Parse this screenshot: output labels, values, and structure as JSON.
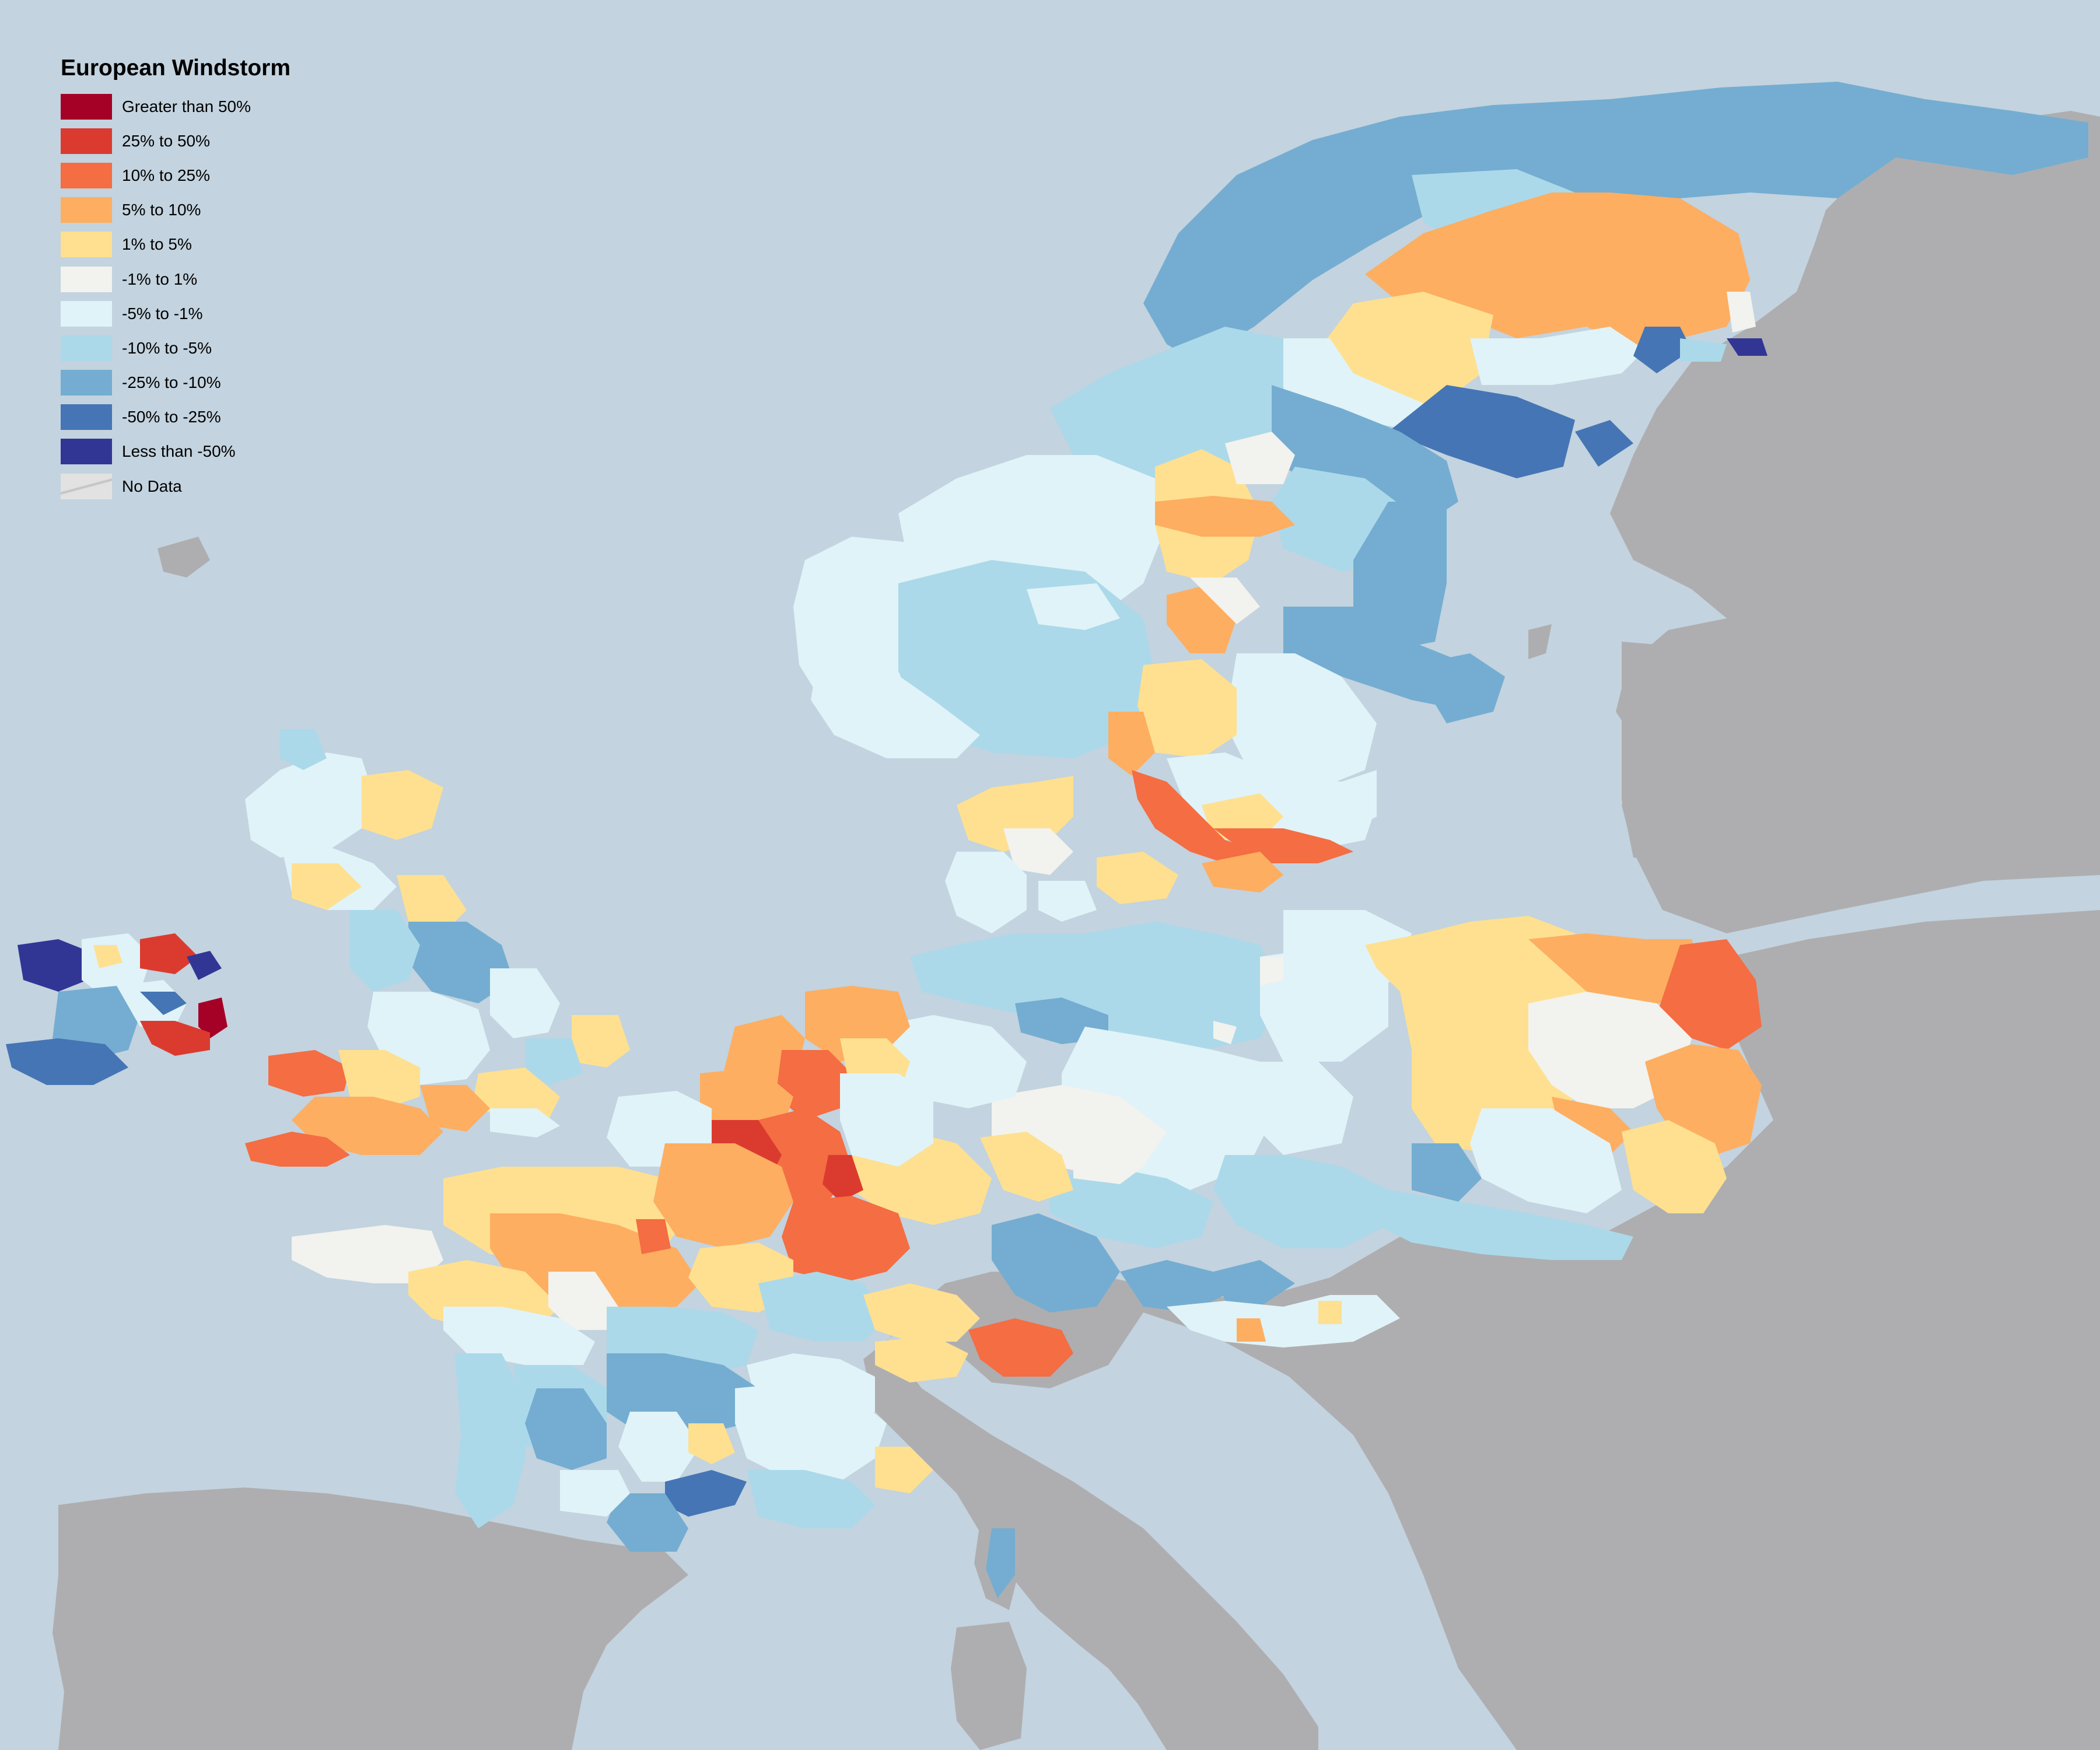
{
  "title": "European Windstorm",
  "legend": [
    {
      "label": "Greater than 50%",
      "color": "#a50026"
    },
    {
      "label": "25% to 50%",
      "color": "#db3b2f"
    },
    {
      "label": "10% to 25%",
      "color": "#f46d43"
    },
    {
      "label": "5% to 10%",
      "color": "#fdae61"
    },
    {
      "label": "1% to 5%",
      "color": "#fee090"
    },
    {
      "label": "-1% to 1%",
      "color": "#f2f2ee"
    },
    {
      "label": "-5% to -1%",
      "color": "#e0f3f8"
    },
    {
      "label": "-10% to -5%",
      "color": "#abd9e9"
    },
    {
      "label": "-25% to -10%",
      "color": "#74add1"
    },
    {
      "label": "-50% to -25%",
      "color": "#4575b4"
    },
    {
      "label": "Less than -50%",
      "color": "#313695"
    },
    {
      "label": "No Data",
      "color": "#e2e2e2"
    }
  ],
  "colors": {
    "sea": "#c3d3df",
    "land": "#aeaeb0"
  }
}
